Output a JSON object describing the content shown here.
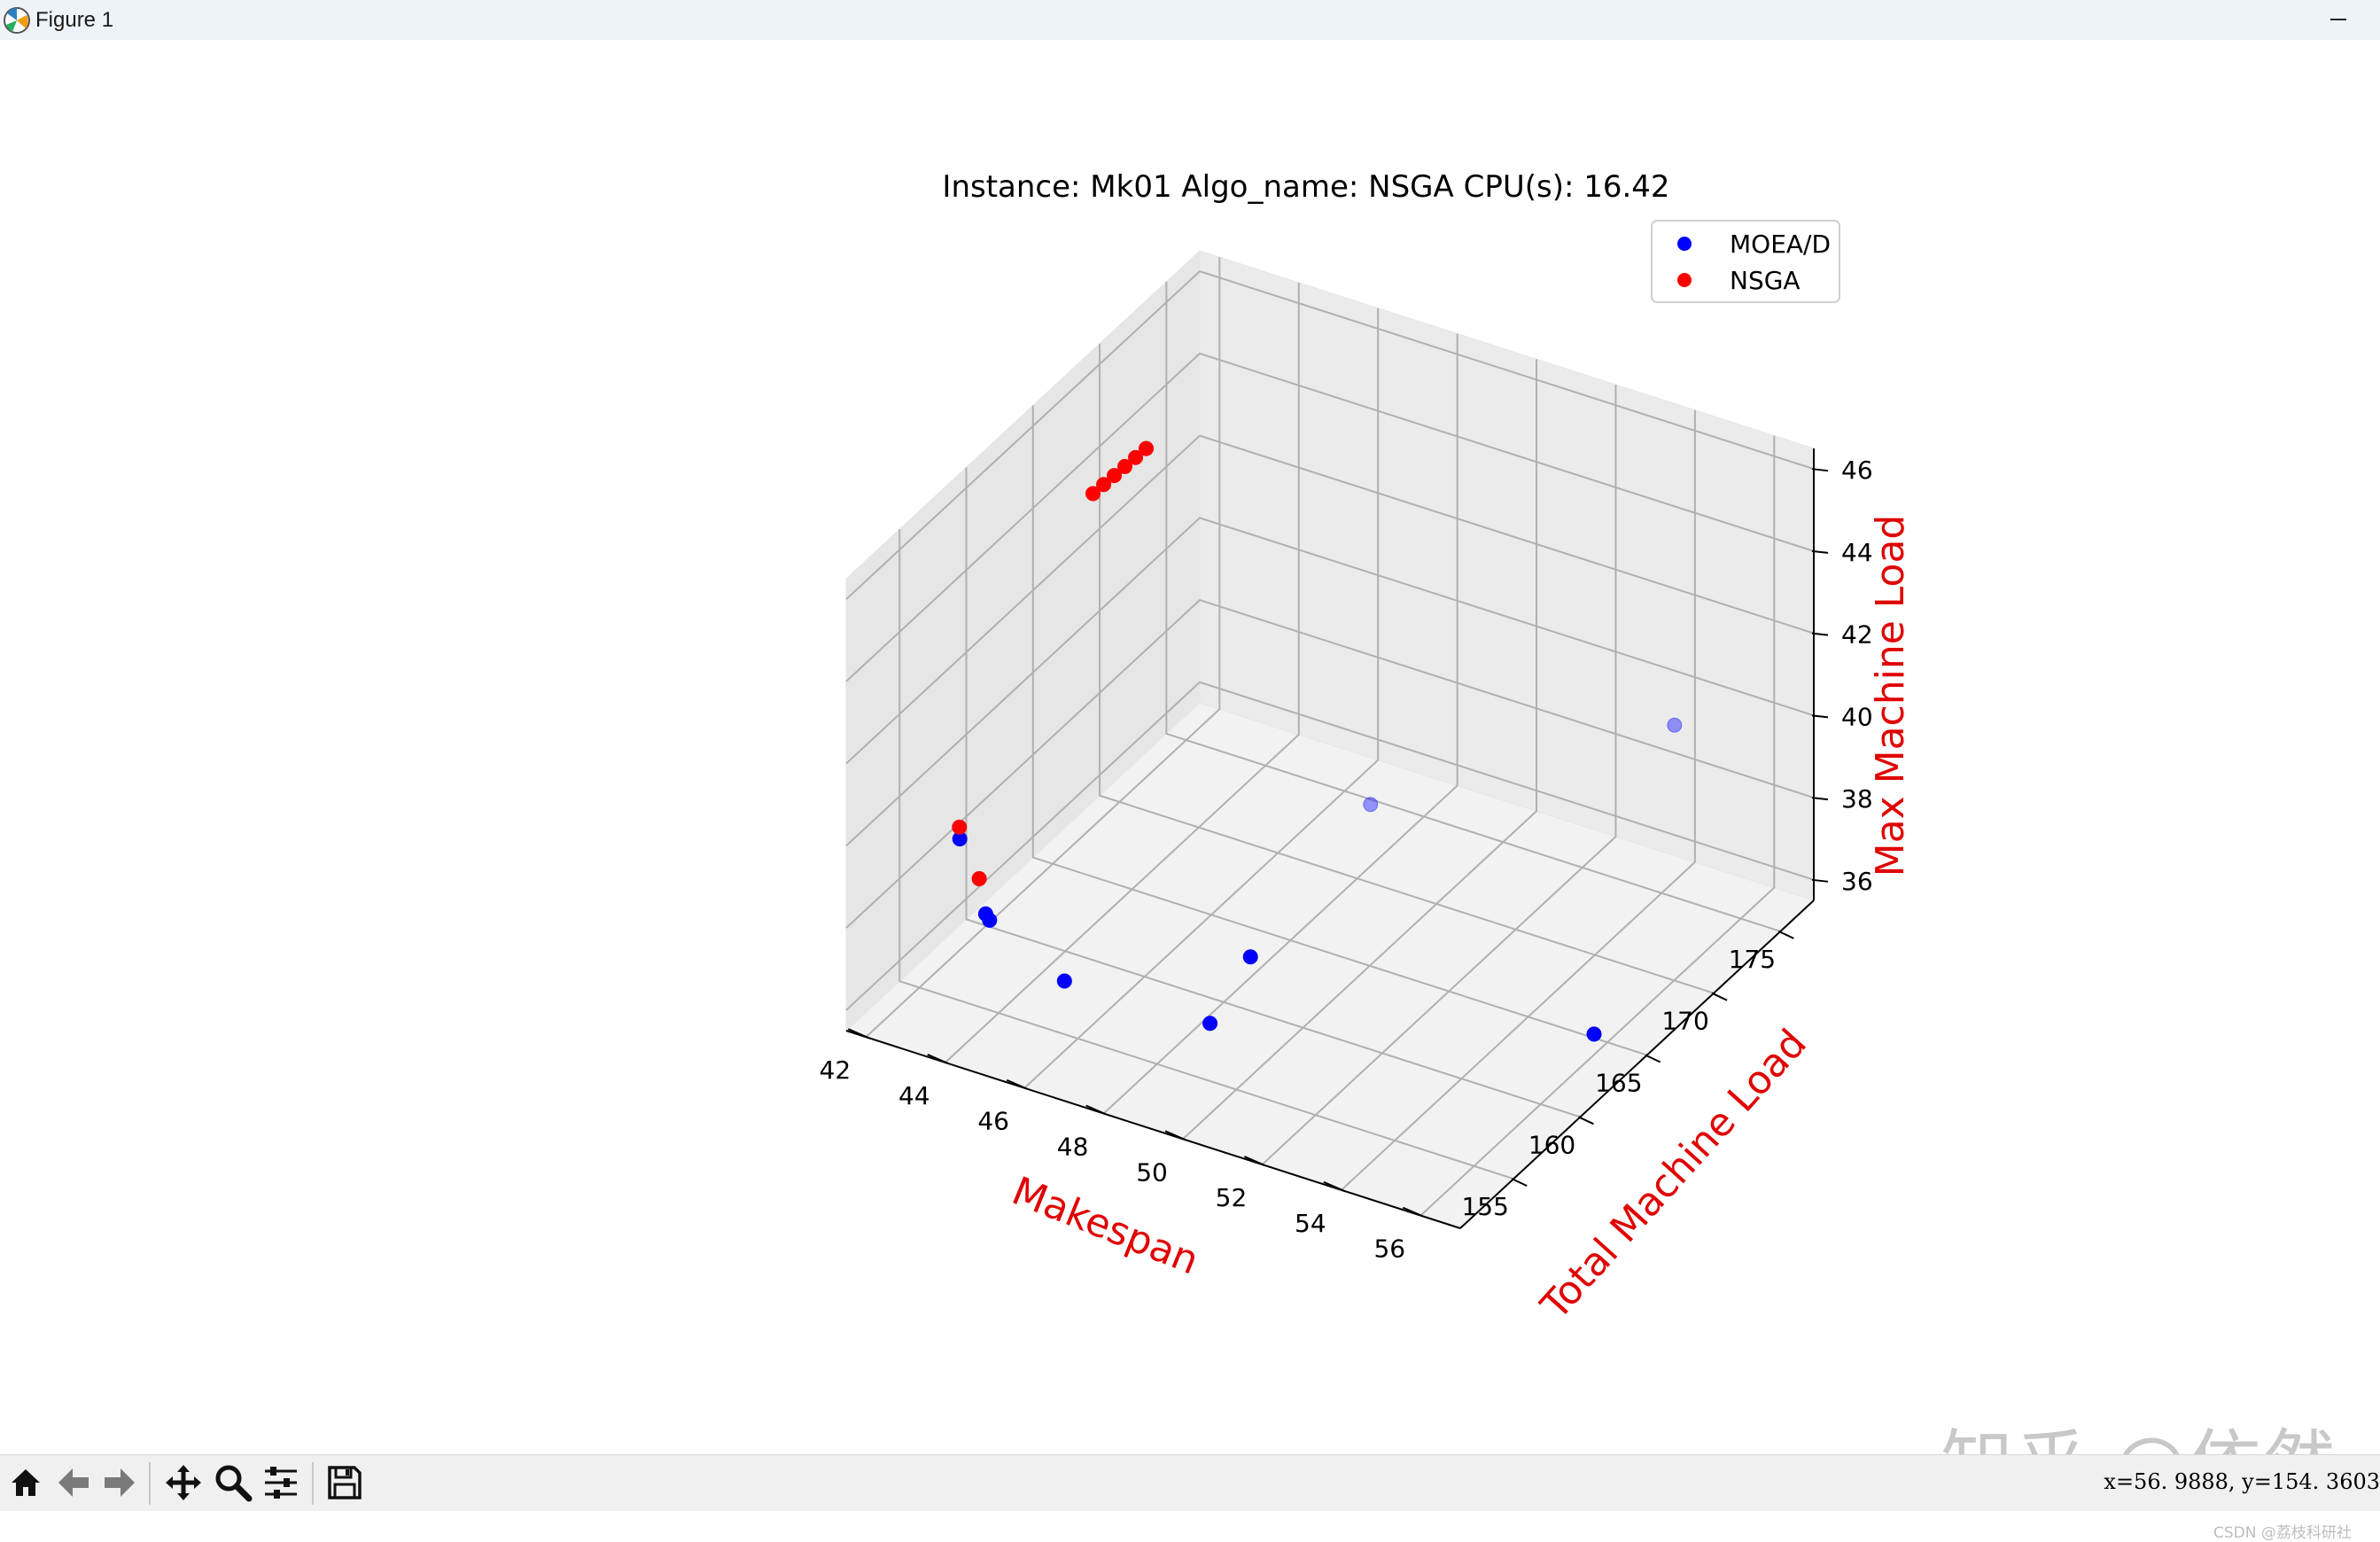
{
  "window": {
    "title": "Figure 1"
  },
  "chart_data": {
    "type": "scatter",
    "projection": "3d",
    "title": "Instance: Mk01 Algo_name: NSGA CPU(s): 16.42",
    "xlabel": "Makespan",
    "ylabel": "Total Machine Load",
    "zlabel": "Max Machine Load",
    "xlim": [
      41.5,
      57
    ],
    "ylim": [
      151,
      177.5
    ],
    "zlim": [
      35.5,
      46.5
    ],
    "xticks": [
      "42",
      "44",
      "46",
      "48",
      "50",
      "52",
      "54",
      "56"
    ],
    "yticks": [
      "155",
      "160",
      "165",
      "170",
      "175"
    ],
    "zticks": [
      "36",
      "38",
      "40",
      "42",
      "44",
      "46"
    ],
    "grid": true,
    "legend_position": "top-right",
    "label_color": "#e00000",
    "series": [
      {
        "name": "MOEA/D",
        "color": "#0000ff",
        "points": [
          [
            42,
            172,
            43.5
          ],
          [
            41,
            161,
            37
          ],
          [
            43,
            157,
            37
          ],
          [
            43.2,
            156.7,
            37
          ],
          [
            48,
            171,
            37
          ],
          [
            46,
            154,
            37.2
          ],
          [
            48,
            162,
            36
          ],
          [
            49,
            156,
            36.5
          ],
          [
            56,
            164,
            36
          ],
          [
            55,
            173,
            40.5
          ]
        ]
      },
      {
        "name": "NSGA",
        "color": "#ff0000",
        "points": [
          [
            42,
            172,
            43.5
          ],
          [
            41.9,
            171.5,
            43.4
          ],
          [
            41.8,
            171,
            43.3
          ],
          [
            41.7,
            170.5,
            43.2
          ],
          [
            41.6,
            170,
            43.1
          ],
          [
            41.5,
            169.5,
            43
          ],
          [
            42,
            158,
            38.5
          ],
          [
            42.5,
            158,
            37.4
          ]
        ]
      }
    ]
  },
  "legend": {
    "entries": [
      "MOEA/D",
      "NSGA"
    ]
  },
  "toolbar": {
    "buttons": [
      "home-icon",
      "back-icon",
      "forward-icon",
      "pan-icon",
      "zoom-icon",
      "configure-subplots-icon",
      "save-icon"
    ],
    "coords": "x=56. 9888, y=154. 3603"
  },
  "watermark": {
    "text": "知乎 @依然",
    "source": "CSDN @荔枝科研社"
  }
}
